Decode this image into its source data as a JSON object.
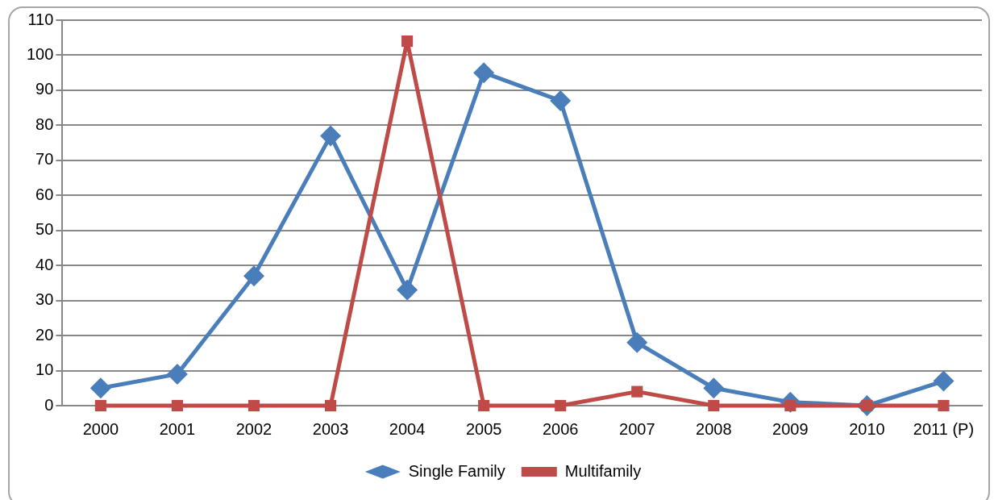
{
  "chart_data": {
    "type": "line",
    "categories": [
      "2000",
      "2001",
      "2002",
      "2003",
      "2004",
      "2005",
      "2006",
      "2007",
      "2008",
      "2009",
      "2010",
      "2011 (P)"
    ],
    "series": [
      {
        "name": "Single Family",
        "color": "#4a7ebb",
        "marker": "diamond",
        "values": [
          5,
          9,
          37,
          77,
          33,
          95,
          87,
          18,
          5,
          1,
          0,
          7
        ]
      },
      {
        "name": "Multifamily",
        "color": "#be4b48",
        "marker": "square",
        "values": [
          0,
          0,
          0,
          0,
          104,
          0,
          0,
          4,
          0,
          0,
          0,
          0
        ]
      }
    ],
    "ylim": [
      0,
      110
    ],
    "yticks": [
      0,
      10,
      20,
      30,
      40,
      50,
      60,
      70,
      80,
      90,
      100,
      110
    ],
    "grid": "y",
    "legend": "bottom",
    "line_style": "solid"
  }
}
